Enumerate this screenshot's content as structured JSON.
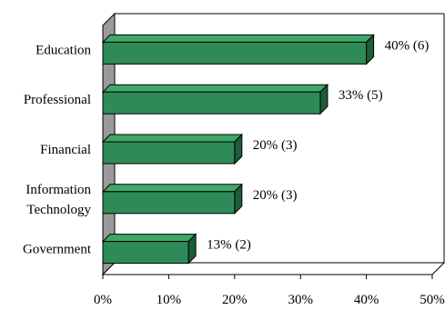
{
  "chart_data": {
    "type": "bar",
    "orientation": "horizontal",
    "style": "3d",
    "categories": [
      [
        "Education"
      ],
      [
        "Professional"
      ],
      [
        "Financial"
      ],
      [
        "Information",
        "Technology"
      ],
      [
        "Government"
      ]
    ],
    "values": [
      40,
      33,
      20,
      20,
      13
    ],
    "counts": [
      6,
      5,
      3,
      3,
      2
    ],
    "data_labels": [
      "40% (6)",
      "33% (5)",
      "20% (3)",
      "20% (3)",
      "13% (2)"
    ],
    "x_ticks": [
      "0%",
      "10%",
      "20%",
      "30%",
      "40%",
      "50%"
    ],
    "xlim": [
      0,
      50
    ],
    "grid": false,
    "legend": "none",
    "colors": {
      "bar_front": "#2e8b57",
      "bar_top": "#3ea869",
      "bar_side": "#1c5e38",
      "wall": "#9a9a9a",
      "outline": "#000000"
    }
  }
}
